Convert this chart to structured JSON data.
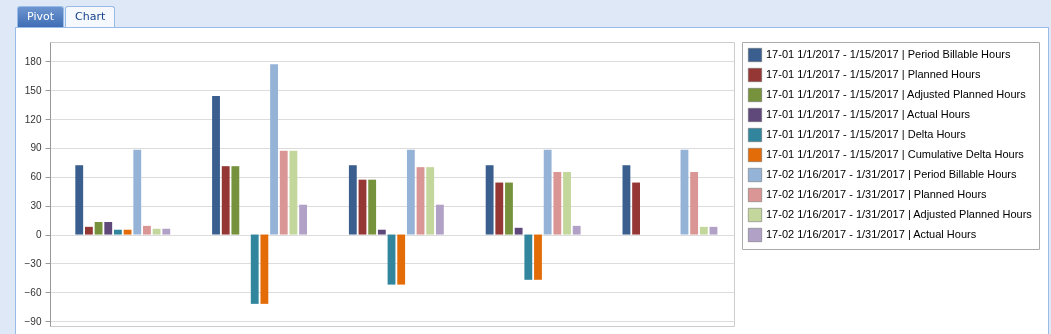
{
  "chart_data": {
    "type": "bar",
    "categories": [
      null,
      null,
      null,
      null,
      null
    ],
    "series": [
      {
        "name": "17-01 1/1/2017 - 1/15/2017 | Period Billable Hours",
        "color": "#3a5f8f",
        "values": [
          72,
          144,
          72,
          72,
          72
        ]
      },
      {
        "name": "17-01 1/1/2017 - 1/15/2017 | Planned Hours",
        "color": "#953735",
        "values": [
          8,
          71,
          57,
          54,
          54
        ]
      },
      {
        "name": "17-01 1/1/2017 - 1/15/2017 | Adjusted Planned Hours",
        "color": "#76923c",
        "values": [
          13,
          71,
          57,
          54,
          0
        ]
      },
      {
        "name": "17-01 1/1/2017 - 1/15/2017 | Actual Hours",
        "color": "#5f497a",
        "values": [
          13,
          0,
          5,
          7,
          0
        ]
      },
      {
        "name": "17-01 1/1/2017 - 1/15/2017 | Delta Hours",
        "color": "#31859c",
        "values": [
          5,
          -72,
          -52,
          -47,
          0
        ]
      },
      {
        "name": "17-01 1/1/2017 - 1/15/2017 | Cumulative Delta Hours",
        "color": "#e36c09",
        "values": [
          5,
          -72,
          -52,
          -47,
          0
        ]
      },
      {
        "name": "17-02 1/16/2017 - 1/31/2017 | Period Billable Hours",
        "color": "#95b3d7",
        "values": [
          88,
          177,
          88,
          88,
          88
        ]
      },
      {
        "name": "17-02 1/16/2017 - 1/31/2017 | Planned Hours",
        "color": "#d99694",
        "values": [
          9,
          87,
          70,
          65,
          65
        ]
      },
      {
        "name": "17-02 1/16/2017 - 1/31/2017 | Adjusted Planned Hours",
        "color": "#c3d69b",
        "values": [
          6,
          87,
          70,
          65,
          8
        ]
      },
      {
        "name": "17-02 1/16/2017 - 1/31/2017 | Actual Hours",
        "color": "#b2a1c7",
        "values": [
          6,
          31,
          31,
          9,
          8
        ]
      }
    ],
    "ylim": [
      -95,
      200
    ],
    "yticks": [
      -90,
      -60,
      -30,
      0,
      30,
      60,
      90,
      120,
      150,
      180
    ],
    "grid": "y",
    "legend": "top right",
    "tick_labels": "y",
    "annotations": [
      "Pivot",
      "Chart"
    ]
  }
}
